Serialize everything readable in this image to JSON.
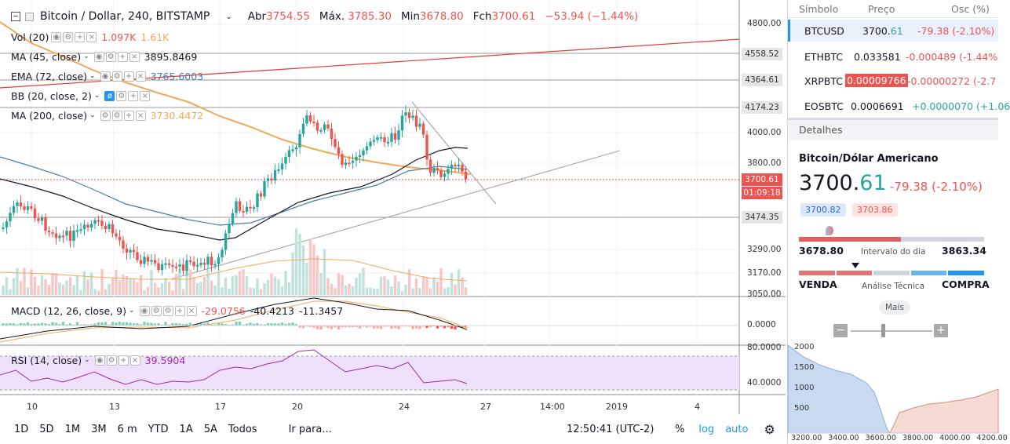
{
  "header": {
    "title": "Bitcoin / Dollar, 240, BITSTAMP",
    "open_label": "Abr",
    "open": "3754.55",
    "high_label": "Máx.",
    "high": "3785.30",
    "low_label": "Min",
    "low": "3678.80",
    "close_label": "Fch",
    "close": "3700.61",
    "change": "−53.94 (−1.44%)"
  },
  "indicators": {
    "vol": {
      "name": "Vol (20)",
      "v1": "1.097K",
      "v2": "1.61K"
    },
    "ma45": {
      "name": "MA (45, close)",
      "value": "3895.8469"
    },
    "ema72": {
      "name": "EMA (72, close)",
      "value": "3765.6003"
    },
    "bb": {
      "name": "BB (20, close, 2)"
    },
    "ma200": {
      "name": "MA (200, close)",
      "value": "3730.4472"
    },
    "macd": {
      "name": "MACD (12, 26, close, 9)",
      "v1": "-29.0756",
      "v2": "-40.4213",
      "v3": "-11.3457"
    },
    "rsi": {
      "name": "RSI (14, close)",
      "value": "39.5904"
    }
  },
  "price_axis": {
    "ticks": [
      "4800.00",
      "4000.00",
      "3800.00",
      "3290.00",
      "3170.00",
      "3050.00"
    ],
    "labels": {
      "l1": "4558.52",
      "l2": "4364.61",
      "l3": "4174.23",
      "l4": "3700.61",
      "l5": "01:09:18",
      "l6": "3474.35"
    },
    "macd_tick": "0.0000",
    "rsi_ticks": [
      "80.0000",
      "40.0000"
    ]
  },
  "time_axis": [
    "10",
    "13",
    "17",
    "20",
    "24",
    "27",
    "14:00",
    "2019",
    "4"
  ],
  "bottom_bar": {
    "ranges": [
      "1D",
      "5D",
      "1M",
      "3M",
      "6 m",
      "YTD",
      "1A",
      "5A",
      "Todos"
    ],
    "goto": "Ir para...",
    "clock": "12:50:41 (UTC-2)",
    "percent": "%",
    "log": "log",
    "auto": "auto"
  },
  "watchlist": {
    "headers": {
      "symbol": "Símbolo",
      "price": "Preço",
      "change": "Osc (%)"
    },
    "rows": [
      {
        "symbol": "BTCUSD",
        "price_int": "3700.",
        "price_dec": "61",
        "change": "-79.38 (-2.10%)"
      },
      {
        "symbol": "ETHBTC",
        "price": "0.033581",
        "change": "-0.000489 (-1.44%"
      },
      {
        "symbol": "XRPBTC",
        "price": "0.00009766",
        "change": "-0.00000272 (-2.7"
      },
      {
        "symbol": "EOSBTC",
        "price": "0.0006691",
        "change": "+0.0000070 (+1.06"
      }
    ]
  },
  "details": {
    "section": "Detalhes",
    "name": "Bitcoin/Dólar Americano",
    "price_int": "3700.",
    "price_dec": "61",
    "change": "-79.38 (-2.10%)",
    "bid": "3700.82",
    "ask": "3703.86",
    "day_low": "3678.80",
    "day_range_label": "Intervalo do dia",
    "day_high": "3863.34",
    "sell": "VENDA",
    "tech_label": "Análise Técnica",
    "buy": "COMPRA",
    "more": "Mais",
    "depth_y": [
      "2000",
      "1500",
      "1000",
      "500"
    ],
    "depth_x": [
      "3200.00",
      "3400.00",
      "3600.00",
      "3800.00",
      "4000.00",
      "4200.00"
    ]
  },
  "colors": {
    "up": "#26a69a",
    "down": "#ef5350",
    "accent": "#2196f3",
    "ma200": "#f0a95a",
    "ema": "#4a7fa8"
  }
}
